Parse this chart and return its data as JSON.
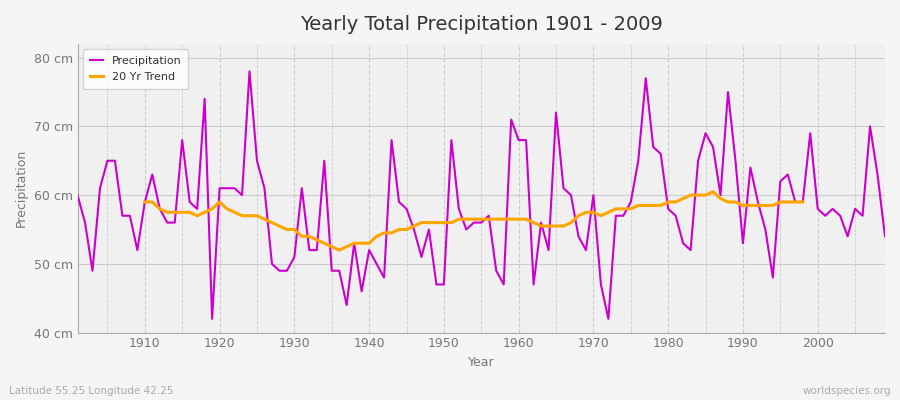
{
  "title": "Yearly Total Precipitation 1901 - 2009",
  "xlabel": "Year",
  "ylabel": "Precipitation",
  "subtitle_left": "Latitude 55.25 Longitude 42.25",
  "subtitle_right": "worldspecies.org",
  "bg_color": "#f5f5f5",
  "plot_bg_color": "#f0f0f0",
  "line_color": "#cc00cc",
  "trend_color": "#FFA500",
  "ylim": [
    40,
    82
  ],
  "yticks": [
    40,
    50,
    60,
    70,
    80
  ],
  "ytick_labels": [
    "40 cm",
    "50 cm",
    "60 cm",
    "70 cm",
    "80 cm"
  ],
  "years": [
    1901,
    1902,
    1903,
    1904,
    1905,
    1906,
    1907,
    1908,
    1909,
    1910,
    1911,
    1912,
    1913,
    1914,
    1915,
    1916,
    1917,
    1918,
    1919,
    1920,
    1921,
    1922,
    1923,
    1924,
    1925,
    1926,
    1927,
    1928,
    1929,
    1930,
    1931,
    1932,
    1933,
    1934,
    1935,
    1936,
    1937,
    1938,
    1939,
    1940,
    1941,
    1942,
    1943,
    1944,
    1945,
    1946,
    1947,
    1948,
    1949,
    1950,
    1951,
    1952,
    1953,
    1954,
    1955,
    1956,
    1957,
    1958,
    1959,
    1960,
    1961,
    1962,
    1963,
    1964,
    1965,
    1966,
    1967,
    1968,
    1969,
    1970,
    1971,
    1972,
    1973,
    1974,
    1975,
    1976,
    1977,
    1978,
    1979,
    1980,
    1981,
    1982,
    1983,
    1984,
    1985,
    1986,
    1987,
    1988,
    1989,
    1990,
    1991,
    1992,
    1993,
    1994,
    1995,
    1996,
    1997,
    1998,
    1999,
    2000,
    2001,
    2002,
    2003,
    2004,
    2005,
    2006,
    2007,
    2008,
    2009
  ],
  "precip": [
    60,
    56,
    49,
    61,
    65,
    65,
    57,
    57,
    52,
    59,
    63,
    58,
    56,
    56,
    68,
    59,
    58,
    74,
    42,
    61,
    61,
    61,
    60,
    78,
    65,
    61,
    50,
    49,
    49,
    51,
    61,
    52,
    52,
    65,
    49,
    49,
    44,
    53,
    46,
    52,
    50,
    48,
    68,
    59,
    58,
    55,
    51,
    55,
    47,
    47,
    68,
    58,
    55,
    56,
    56,
    57,
    49,
    47,
    71,
    68,
    68,
    47,
    56,
    52,
    72,
    61,
    60,
    54,
    52,
    60,
    47,
    42,
    57,
    57,
    59,
    65,
    77,
    67,
    66,
    58,
    57,
    53,
    52,
    65,
    69,
    67,
    60,
    75,
    65,
    53,
    64,
    59,
    55,
    48,
    62,
    63,
    59,
    59,
    69,
    58,
    57,
    58,
    57,
    54,
    58,
    57,
    70,
    63,
    54
  ],
  "trend": [
    null,
    null,
    null,
    null,
    null,
    null,
    null,
    null,
    null,
    59,
    59,
    58,
    57.5,
    57.5,
    57.5,
    57.5,
    57,
    57.5,
    58,
    59,
    58,
    57.5,
    57,
    57,
    57,
    56.5,
    56,
    55.5,
    55,
    55,
    54,
    54,
    53.5,
    53,
    52.5,
    52,
    52.5,
    53,
    53,
    53,
    54,
    54.5,
    54.5,
    55,
    55,
    55.5,
    56,
    56,
    56,
    56,
    56,
    56.5,
    56.5,
    56.5,
    56.5,
    56.5,
    56.5,
    56.5,
    56.5,
    56.5,
    56.5,
    56,
    55.5,
    55.5,
    55.5,
    55.5,
    56,
    57,
    57.5,
    57.5,
    57,
    57.5,
    58,
    58,
    58,
    58.5,
    58.5,
    58.5,
    58.5,
    59,
    59,
    59.5,
    60,
    60,
    60,
    60.5,
    59.5,
    59,
    59,
    58.5,
    58.5,
    58.5,
    58.5,
    58.5,
    59,
    59,
    59,
    59,
    null,
    null,
    null,
    null,
    null,
    null,
    null,
    null,
    null,
    null,
    null
  ]
}
